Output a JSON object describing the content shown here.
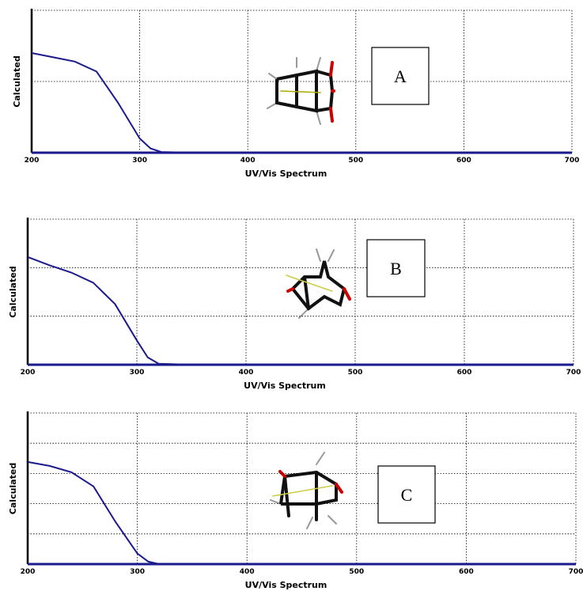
{
  "chart_data": [
    {
      "type": "line",
      "xlabel": "UV/Vis Spectrum",
      "ylabel": "Calculated",
      "annotation": "A",
      "x": [
        200,
        220,
        240,
        260,
        280,
        300,
        310,
        320,
        350,
        400,
        500,
        600,
        700
      ],
      "values": [
        1.4,
        1.34,
        1.28,
        1.14,
        0.7,
        0.2,
        0.06,
        0.01,
        0,
        0,
        0,
        0,
        0
      ],
      "color": "#1a1a8c",
      "xlim": [
        200,
        700
      ],
      "xticks": [
        200,
        300,
        400,
        500,
        600,
        700
      ],
      "ylim": [
        0,
        2
      ],
      "ygrid": [
        1,
        2
      ],
      "grid": true
    },
    {
      "type": "line",
      "xlabel": "UV/Vis Spectrum",
      "ylabel": "Calculated",
      "annotation": "B",
      "x": [
        200,
        220,
        240,
        260,
        280,
        300,
        310,
        320,
        350,
        400,
        500,
        600,
        700
      ],
      "values": [
        2.22,
        2.05,
        1.9,
        1.69,
        1.25,
        0.5,
        0.15,
        0.02,
        0,
        0,
        0,
        0,
        0
      ],
      "color": "#1a1a8c",
      "xlim": [
        200,
        700
      ],
      "xticks": [
        200,
        300,
        400,
        500,
        600,
        700
      ],
      "ylim": [
        0,
        3
      ],
      "ygrid": [
        1,
        2,
        3
      ],
      "grid": true
    },
    {
      "type": "line",
      "xlabel": "UV/Vis Spectrum",
      "ylabel": "Calculated",
      "annotation": "C",
      "x": [
        200,
        220,
        240,
        260,
        280,
        300,
        310,
        320,
        350,
        400,
        500,
        600,
        700
      ],
      "values": [
        3.38,
        3.25,
        3.04,
        2.57,
        1.4,
        0.35,
        0.08,
        0,
        0,
        0,
        0,
        0,
        0
      ],
      "color": "#1a1a8c",
      "xlim": [
        200,
        700
      ],
      "xticks": [
        200,
        300,
        400,
        500,
        600,
        700
      ],
      "ylim": [
        0,
        5
      ],
      "ygrid": [
        1,
        2,
        3,
        4,
        5
      ],
      "grid": true
    }
  ]
}
